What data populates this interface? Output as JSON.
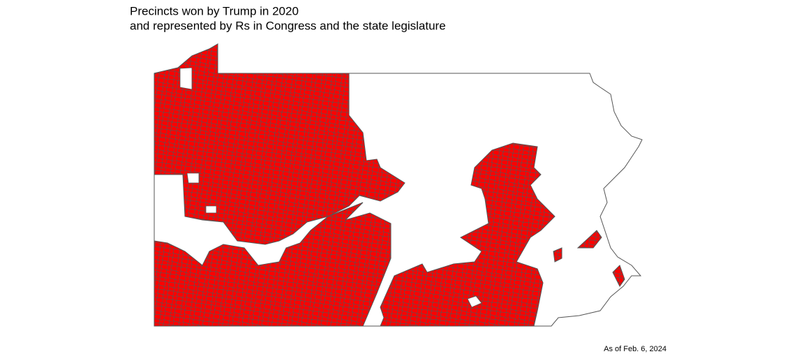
{
  "title": [
    "Precincts won by Trump in 2020",
    "and represented by Rs in Congress and the state legislature"
  ],
  "caption": "As of Feb. 6, 2024"
}
